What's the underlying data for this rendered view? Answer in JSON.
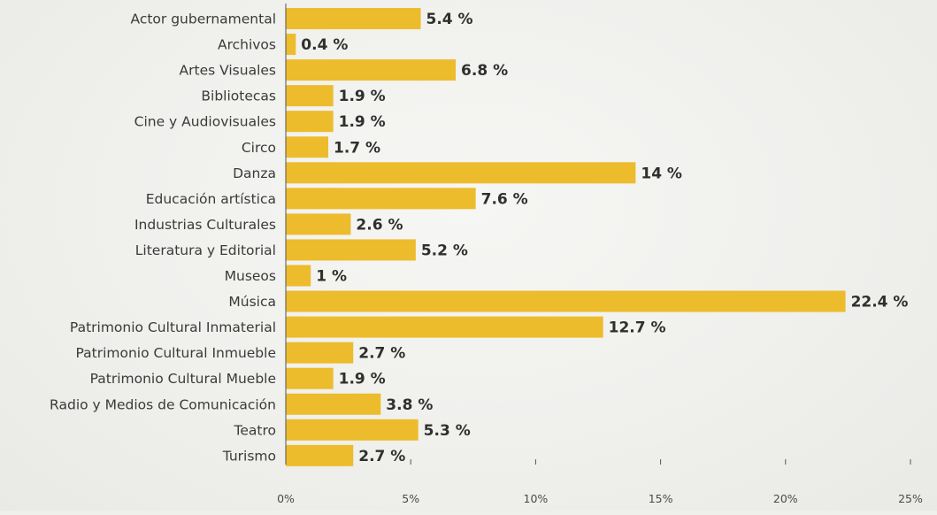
{
  "chart_data": {
    "type": "bar",
    "orientation": "horizontal",
    "title": "",
    "xlabel": "",
    "ylabel": "",
    "categories": [
      "Actor gubernamental",
      "Archivos",
      "Artes Visuales",
      "Bibliotecas",
      "Cine y Audiovisuales",
      "Circo",
      "Danza",
      "Educación artística",
      "Industrias Culturales",
      "Literatura y Editorial",
      "Museos",
      "Música",
      "Patrimonio Cultural Inmaterial",
      "Patrimonio Cultural Inmueble",
      "Patrimonio Cultural Mueble",
      "Radio y Medios de Comunicación",
      "Teatro",
      "Turismo"
    ],
    "values": [
      5.4,
      0.4,
      6.8,
      1.9,
      1.9,
      1.7,
      14,
      7.6,
      2.6,
      5.2,
      1,
      22.4,
      12.7,
      2.7,
      1.9,
      3.8,
      5.3,
      2.7
    ],
    "value_labels": [
      "5.4 %",
      "0.4 %",
      "6.8 %",
      "1.9 %",
      "1.9 %",
      "1.7 %",
      "14 %",
      "7.6 %",
      "2.6 %",
      "5.2 %",
      "1 %",
      "22.4 %",
      "12.7 %",
      "2.7 %",
      "1.9 %",
      "3.8 %",
      "5.3 %",
      "2.7 %"
    ],
    "xlim": [
      0,
      25
    ],
    "xticks": [
      "0%",
      "5%",
      "10%",
      "15%",
      "20%",
      "25%"
    ],
    "grid": false,
    "legend": "none",
    "colors": {
      "bar": "#ecbc2c",
      "axis": "#555555",
      "text": "#333333"
    }
  }
}
